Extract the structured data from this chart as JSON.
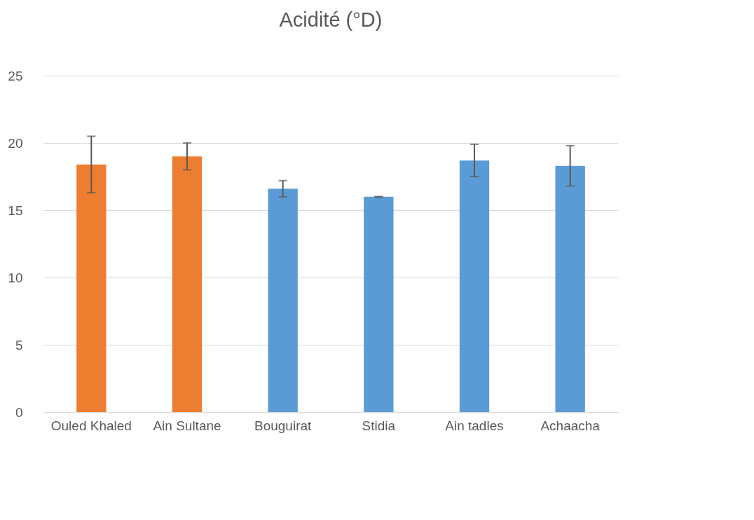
{
  "chart_data": {
    "type": "bar",
    "title": "Acidité (°D)",
    "categories": [
      "Ouled Khaled",
      "Ain Sultane",
      "Bouguirat",
      "Stidia",
      "Ain tadles",
      "Achaacha"
    ],
    "values": [
      18.4,
      19.0,
      16.6,
      16.0,
      18.7,
      18.3
    ],
    "errors": [
      2.1,
      1.0,
      0.6,
      0.02,
      1.2,
      1.5
    ],
    "colors": [
      "#ed7d31",
      "#ed7d31",
      "#5b9bd5",
      "#5b9bd5",
      "#5b9bd5",
      "#5b9bd5"
    ],
    "ylim": [
      0,
      25
    ],
    "yticks": [
      0,
      5,
      10,
      15,
      20,
      25
    ],
    "grid": "y"
  }
}
